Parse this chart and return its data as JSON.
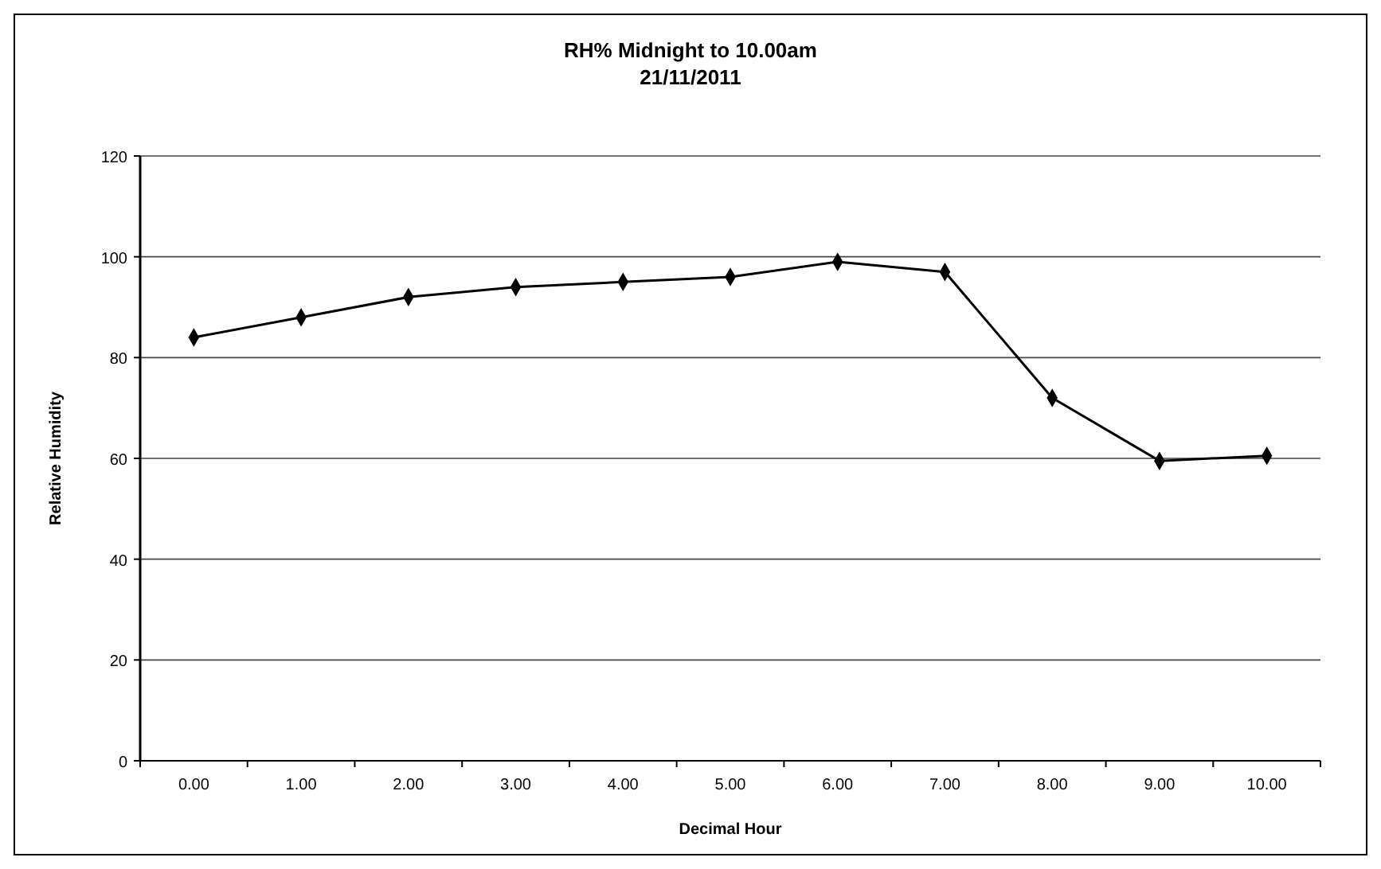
{
  "chart_data": {
    "type": "line",
    "title": "RH% Midnight to 10.00am\n21/11/2011",
    "xlabel": "Decimal Hour",
    "ylabel": "Relative Humidity",
    "categories": [
      "0.00",
      "1.00",
      "2.00",
      "3.00",
      "4.00",
      "5.00",
      "6.00",
      "7.00",
      "8.00",
      "9.00",
      "10.00"
    ],
    "series": [
      {
        "color": "#000000",
        "values": [
          84,
          88,
          92,
          94,
          95,
          96,
          99,
          97,
          72,
          59.5,
          60.5
        ]
      }
    ],
    "ylim": [
      0,
      120
    ],
    "yticks": [
      0,
      20,
      40,
      60,
      80,
      100,
      120
    ],
    "grid": "y",
    "marker": "diamond",
    "line_style": "solid"
  }
}
